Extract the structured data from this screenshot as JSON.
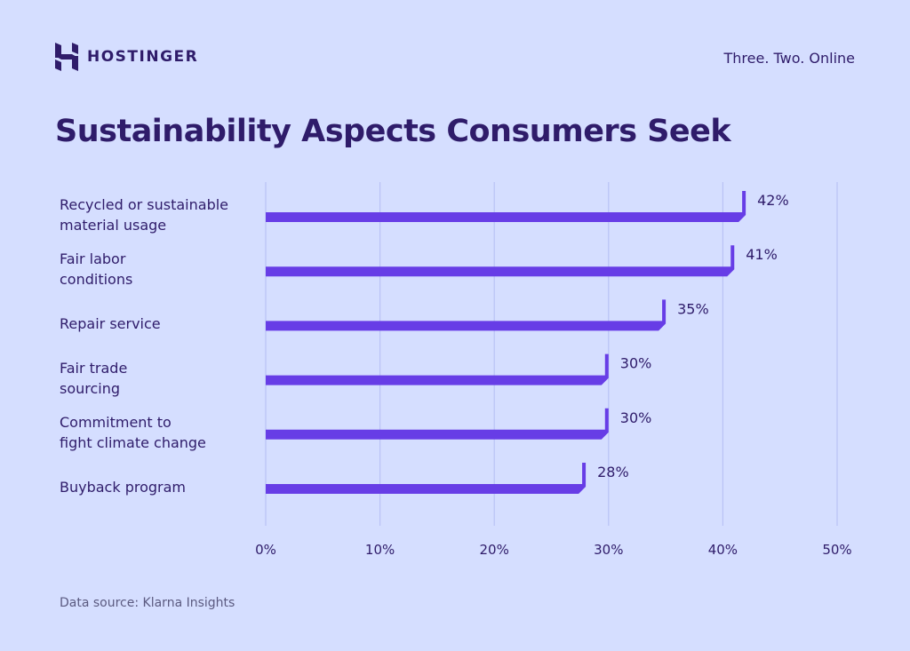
{
  "brand": {
    "name": "HOSTINGER",
    "tagline": "Three. Two. Online"
  },
  "colors": {
    "background": "#d5deff",
    "bar": "#673de6",
    "text": "#2f1c6a",
    "grid": "#b9c2f5"
  },
  "chart_data": {
    "type": "bar",
    "orientation": "horizontal",
    "title": "Sustainability Aspects Consumers Seek",
    "categories": [
      "Recycled or sustainable\nmaterial usage",
      "Fair labor\nconditions",
      "Repair service",
      "Fair trade\nsourcing",
      "Commitment to\nfight climate change",
      "Buyback program"
    ],
    "values": [
      42,
      41,
      35,
      30,
      30,
      28
    ],
    "data_labels": [
      "42%",
      "41%",
      "35%",
      "30%",
      "30%",
      "28%"
    ],
    "xlim": [
      0,
      50
    ],
    "x_ticks": [
      "0%",
      "10%",
      "20%",
      "30%",
      "40%",
      "50%"
    ],
    "grid": "vertical",
    "source": "Data source: Klarna Insights"
  }
}
